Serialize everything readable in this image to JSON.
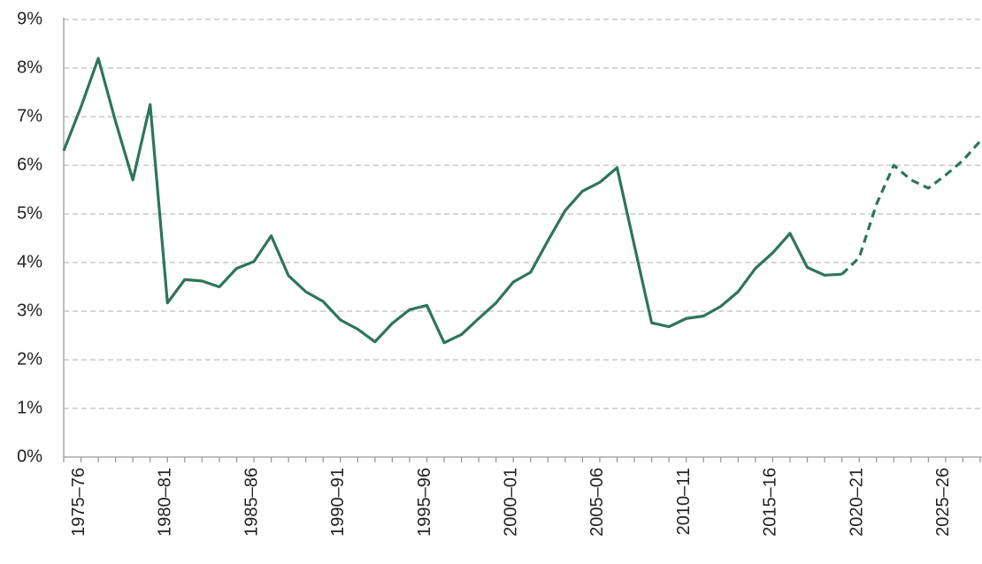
{
  "chart_data": {
    "type": "line",
    "categories": [
      null,
      "1975–76",
      null,
      null,
      null,
      null,
      "1980–81",
      null,
      null,
      null,
      null,
      "1985–86",
      null,
      null,
      null,
      null,
      "1990–91",
      null,
      null,
      null,
      null,
      "1995–96",
      null,
      null,
      null,
      null,
      "2000–01",
      null,
      null,
      null,
      null,
      "2005–06",
      null,
      null,
      null,
      null,
      "2010–11",
      null,
      null,
      null,
      null,
      "2015–16",
      null,
      null,
      null,
      null,
      "2020–21",
      null,
      null,
      null,
      null,
      "2025–26",
      null,
      null
    ],
    "series": [
      {
        "color": "#2e7558",
        "dashed": false,
        "values": [
          6.3,
          7.2,
          8.2,
          6.9,
          5.7,
          7.25,
          3.17,
          3.65,
          3.62,
          3.5,
          3.88,
          4.02,
          4.55,
          3.73,
          3.4,
          3.2,
          2.82,
          2.63,
          2.37,
          2.75,
          3.03,
          3.12,
          2.35,
          2.52,
          2.85,
          3.17,
          3.6,
          3.8,
          4.45,
          5.07,
          5.47,
          5.65,
          5.95,
          4.35,
          2.76,
          2.68,
          2.85,
          2.9,
          3.1,
          3.4,
          3.88,
          4.2,
          4.6,
          3.9,
          3.74,
          3.76,
          null,
          null,
          null,
          null,
          null,
          null,
          null,
          null
        ]
      },
      {
        "color": "#2e7558",
        "dashed": true,
        "values": [
          null,
          null,
          null,
          null,
          null,
          null,
          null,
          null,
          null,
          null,
          null,
          null,
          null,
          null,
          null,
          null,
          null,
          null,
          null,
          null,
          null,
          null,
          null,
          null,
          null,
          null,
          null,
          null,
          null,
          null,
          null,
          null,
          null,
          null,
          null,
          null,
          null,
          null,
          null,
          null,
          null,
          null,
          null,
          null,
          null,
          3.76,
          4.1,
          5.2,
          6.0,
          5.7,
          5.53,
          5.8,
          6.1,
          6.5
        ]
      }
    ],
    "ylim": [
      0,
      9
    ],
    "yticks": [
      {
        "value": 0,
        "label": "0%"
      },
      {
        "value": 1,
        "label": "1%"
      },
      {
        "value": 2,
        "label": "2%"
      },
      {
        "value": 3,
        "label": "3%"
      },
      {
        "value": 4,
        "label": "4%"
      },
      {
        "value": 5,
        "label": "5%"
      },
      {
        "value": 6,
        "label": "6%"
      },
      {
        "value": 7,
        "label": "7%"
      },
      {
        "value": 8,
        "label": "8%"
      },
      {
        "value": 9,
        "label": "9%"
      }
    ],
    "grid": true
  }
}
